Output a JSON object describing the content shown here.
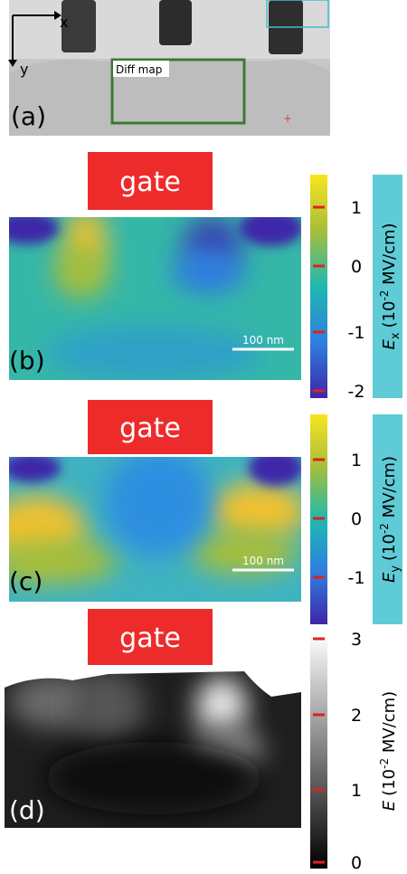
{
  "panel_a": {
    "label": "(a)",
    "axis_x": "x",
    "axis_y": "y",
    "region_label": "Diff map"
  },
  "panels": [
    {
      "label": "(b)",
      "gate": "gate",
      "scale_bar": "100 nm",
      "colorbar": {
        "ticks": [
          1,
          0,
          -1,
          -2
        ],
        "quantity": "E",
        "subscript": "x",
        "unit_open": "(10",
        "unit_exponent": "-2",
        "unit_rest": " MV/cm)"
      }
    },
    {
      "label": "(c)",
      "gate": "gate",
      "scale_bar": "100 nm",
      "colorbar": {
        "ticks": [
          1,
          0,
          -1
        ],
        "quantity": "E",
        "subscript": "y",
        "unit_open": "(10",
        "unit_exponent": "-2",
        "unit_rest": " MV/cm)"
      }
    },
    {
      "label": "(d)",
      "gate": "gate",
      "colorbar": {
        "ticks": [
          3,
          2,
          1,
          0
        ],
        "quantity": "E",
        "unit_open": "(10",
        "unit_exponent": "-2",
        "unit_rest": " MV/cm)"
      }
    }
  ]
}
